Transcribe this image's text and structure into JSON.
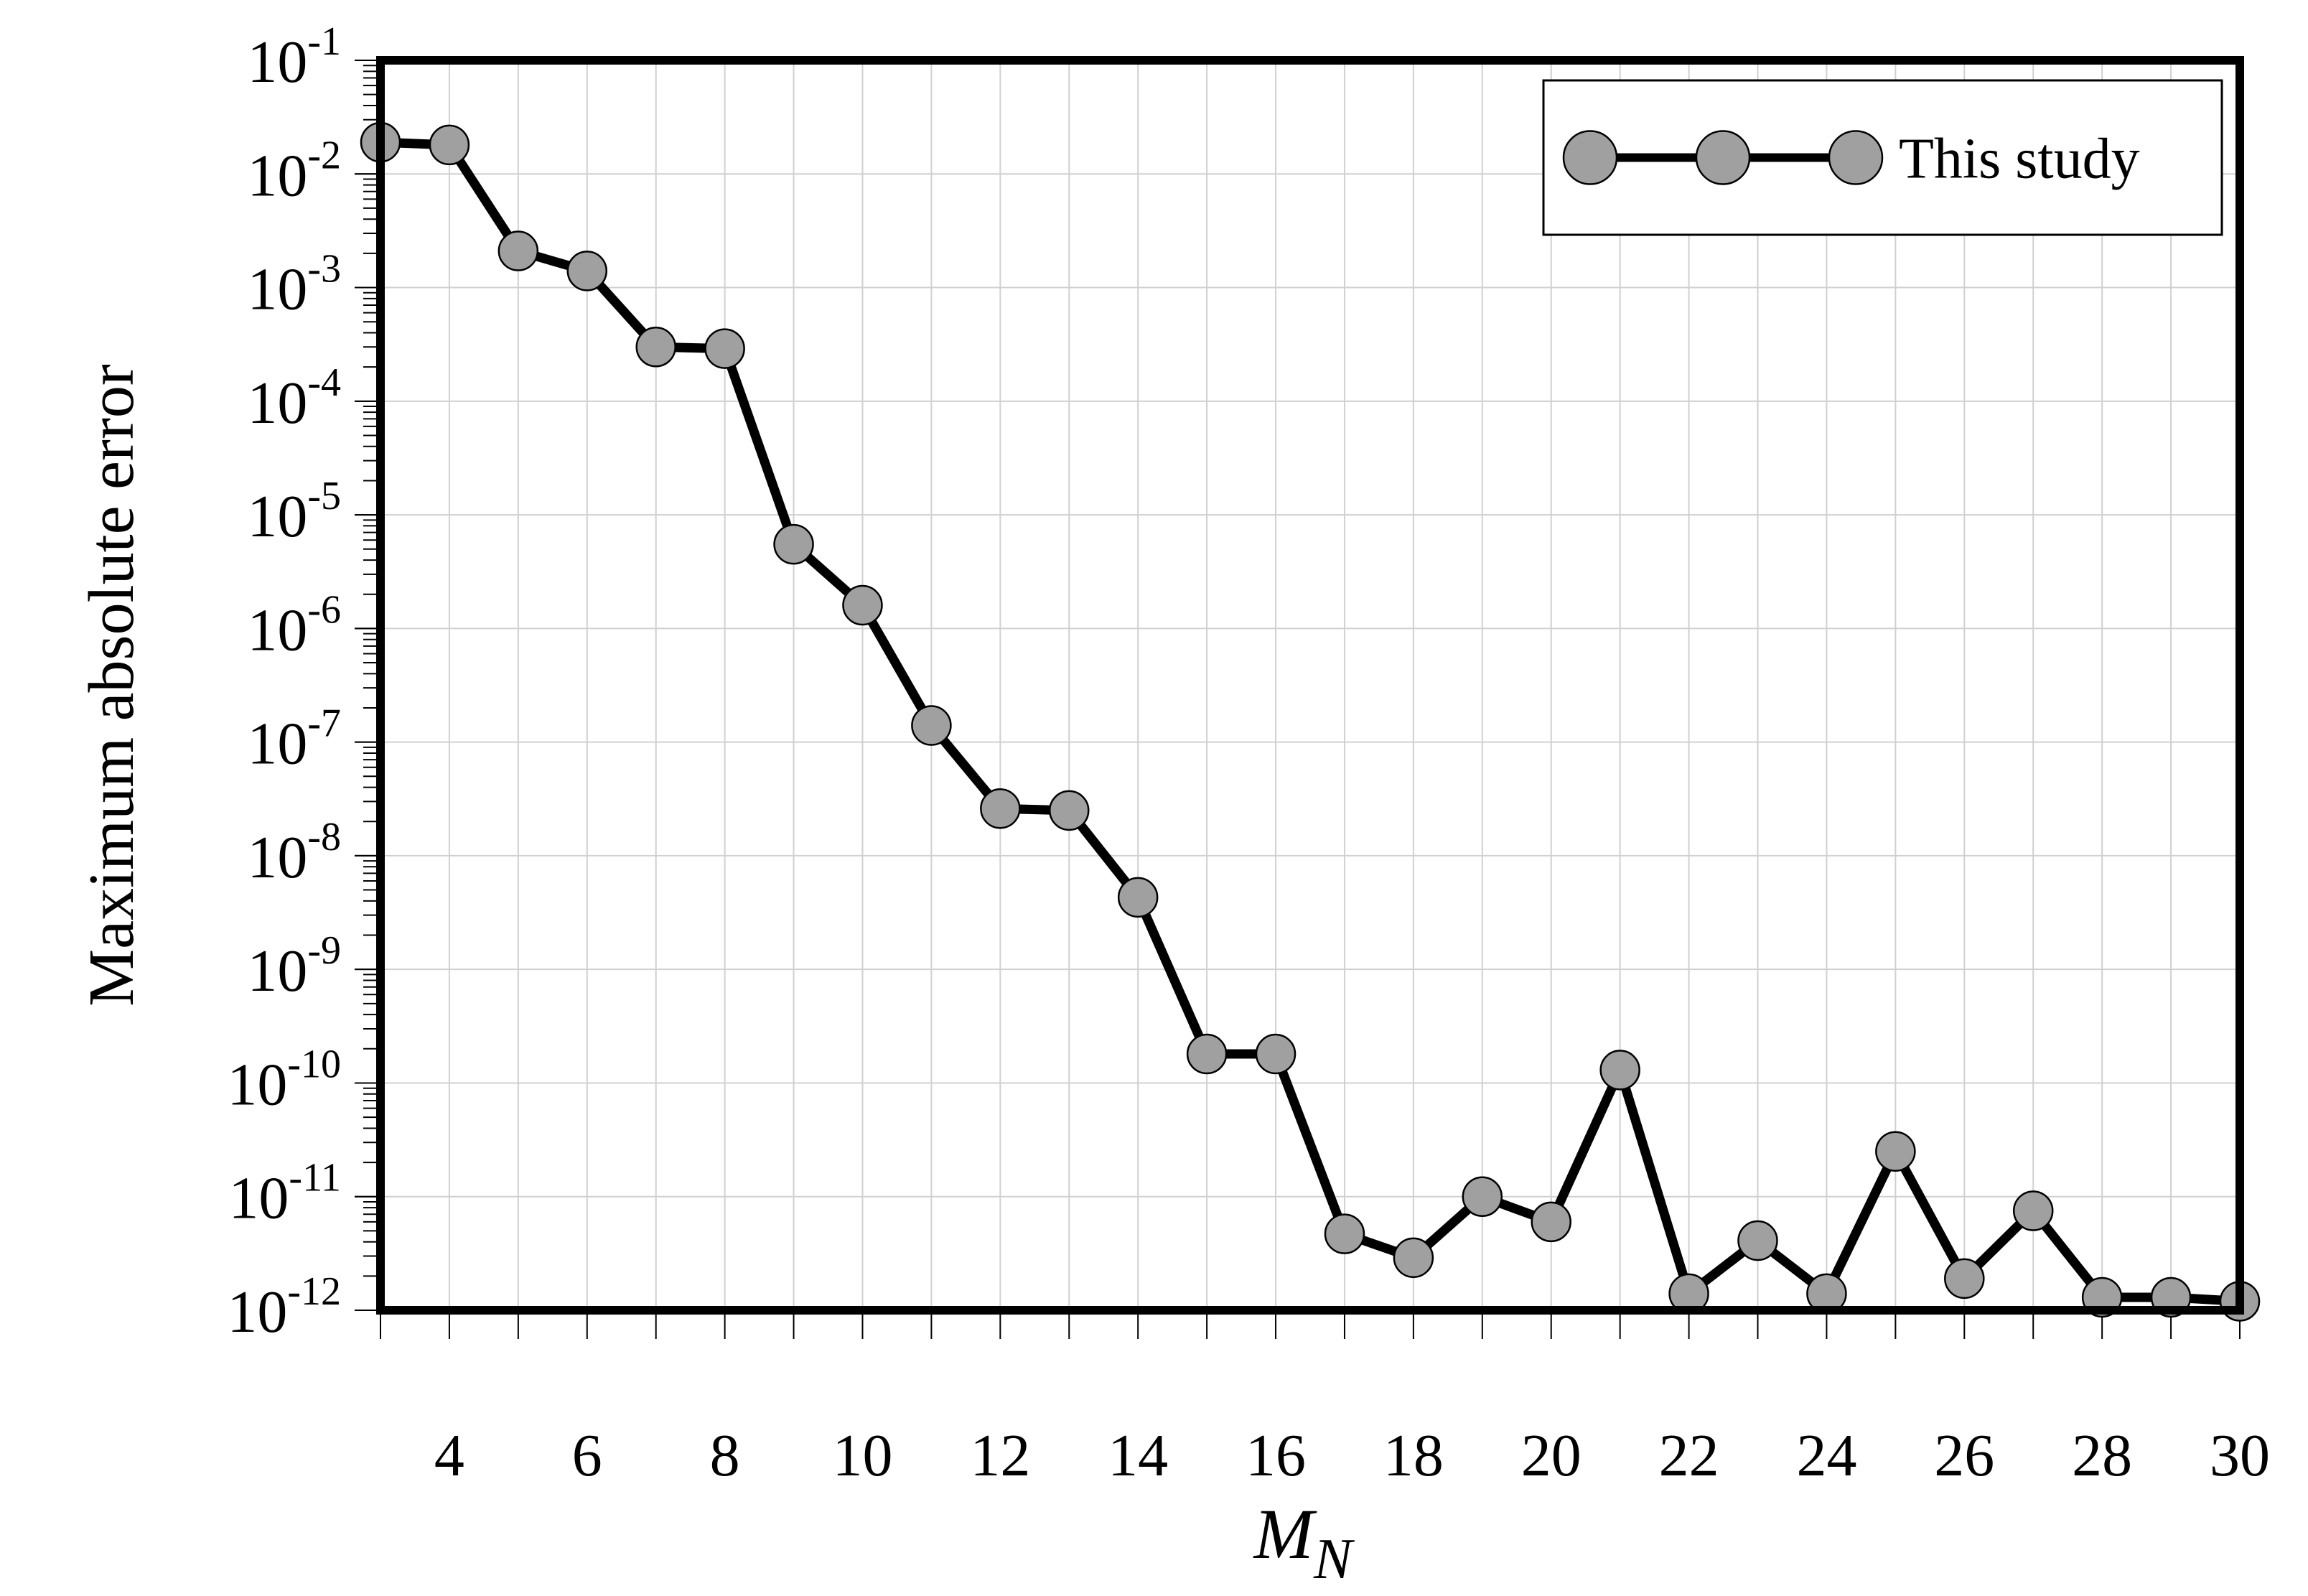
{
  "chart_data": {
    "type": "line",
    "title": "",
    "xlabel": "M",
    "xlabel_sub": "N",
    "ylabel": "Maximum absolute error",
    "y_scale": "log",
    "xlim": [
      3,
      30
    ],
    "ylim": [
      1e-12,
      0.1
    ],
    "x_ticks": [
      3,
      4,
      5,
      6,
      7,
      8,
      9,
      10,
      11,
      12,
      13,
      14,
      15,
      16,
      17,
      18,
      19,
      20,
      21,
      22,
      23,
      24,
      25,
      26,
      27,
      28,
      29,
      30
    ],
    "x_tick_labels": [
      "4",
      "6",
      "8",
      "10",
      "12",
      "14",
      "16",
      "18",
      "20",
      "22",
      "24",
      "26",
      "28",
      "30"
    ],
    "y_tick_labels": [
      {
        "base": "10",
        "exp": "-1"
      },
      {
        "base": "10",
        "exp": "-2"
      },
      {
        "base": "10",
        "exp": "-3"
      },
      {
        "base": "10",
        "exp": "-4"
      },
      {
        "base": "10",
        "exp": "-5"
      },
      {
        "base": "10",
        "exp": "-6"
      },
      {
        "base": "10",
        "exp": "-7"
      },
      {
        "base": "10",
        "exp": "-8"
      },
      {
        "base": "10",
        "exp": "-9"
      },
      {
        "base": "10",
        "exp": "-10"
      },
      {
        "base": "10",
        "exp": "-11"
      },
      {
        "base": "10",
        "exp": "-12"
      }
    ],
    "grid": true,
    "legend_position": "top-right",
    "colors": {
      "line": "#000000",
      "marker_fill": "#a0a0a0",
      "grid": "#d0d0d0"
    },
    "series": [
      {
        "name": "This study",
        "x": [
          3,
          4,
          5,
          6,
          7,
          8,
          9,
          10,
          11,
          12,
          13,
          14,
          15,
          16,
          17,
          18,
          19,
          20,
          21,
          22,
          23,
          24,
          25,
          26,
          27,
          28,
          29,
          30
        ],
        "y": [
          0.019,
          0.018,
          0.0021,
          0.0014,
          0.0003,
          0.00029,
          5.5e-06,
          1.6e-06,
          1.4e-07,
          2.6e-08,
          2.5e-08,
          4.3e-09,
          1.8e-10,
          1.8e-10,
          4.7e-12,
          2.9e-12,
          1e-11,
          6e-12,
          1.3e-10,
          1.4e-12,
          4.1e-12,
          1.4e-12,
          2.5e-11,
          1.9e-12,
          7.5e-12,
          1.3e-12,
          1.3e-12,
          1.2e-12
        ]
      }
    ]
  }
}
